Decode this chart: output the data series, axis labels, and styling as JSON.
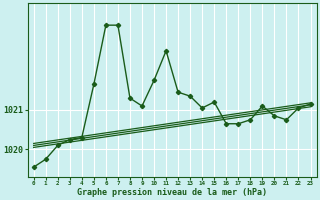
{
  "xlabel": "Graphe pression niveau de la mer (hPa)",
  "x_values": [
    0,
    1,
    2,
    3,
    4,
    5,
    6,
    7,
    8,
    9,
    10,
    11,
    12,
    13,
    14,
    15,
    16,
    17,
    18,
    19,
    20,
    21,
    22,
    23
  ],
  "y_main": [
    1019.55,
    1019.75,
    1020.1,
    1020.25,
    1020.3,
    1021.65,
    1023.15,
    1023.15,
    1021.3,
    1021.1,
    1021.75,
    1022.5,
    1021.45,
    1021.35,
    1021.05,
    1021.2,
    1020.65,
    1020.65,
    1020.75,
    1021.1,
    1020.85,
    1020.75,
    1021.05,
    1021.15
  ],
  "ylim_min": 1019.3,
  "ylim_max": 1023.7,
  "ytick_labels": [
    "1020",
    "1021"
  ],
  "ytick_values": [
    1020.0,
    1021.0
  ],
  "xtick_labels": [
    "0",
    "1",
    "2",
    "3",
    "4",
    "5",
    "6",
    "7",
    "8",
    "9",
    "10",
    "11",
    "12",
    "13",
    "14",
    "15",
    "16",
    "17",
    "18",
    "19",
    "20",
    "21",
    "22",
    "23"
  ],
  "bg_color": "#cdf0f0",
  "line_color": "#1a5c1a",
  "grid_color": "#ffffff",
  "label_color": "#1a5c1a",
  "trend_lines": [
    [
      1020.05,
      1021.08
    ],
    [
      1020.1,
      1021.13
    ],
    [
      1020.15,
      1021.18
    ]
  ]
}
